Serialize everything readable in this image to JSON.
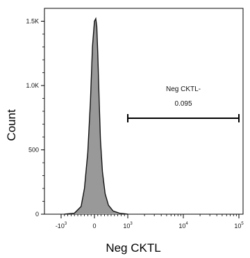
{
  "chart_data": {
    "type": "area",
    "xlabel": "Neg CKTL",
    "ylabel": "Count",
    "x_scale": "biexponential",
    "xlim": [
      -1800,
      150000
    ],
    "ylim": [
      0,
      1600
    ],
    "y_ticks": [
      {
        "value": 0,
        "label": "0"
      },
      {
        "value": 500,
        "label": "500"
      },
      {
        "value": 1000,
        "label": "1.0K"
      },
      {
        "value": 1500,
        "label": "1.5K"
      }
    ],
    "x_ticks": [
      {
        "value": -1000,
        "base": "-10",
        "exp": "3"
      },
      {
        "value": 0,
        "base": "0",
        "exp": ""
      },
      {
        "value": 1000,
        "base": "10",
        "exp": "3"
      },
      {
        "value": 10000,
        "base": "10",
        "exp": "4"
      },
      {
        "value": 100000,
        "base": "10",
        "exp": "5"
      }
    ],
    "series": [
      {
        "x": [
          -900,
          -600,
          -400,
          -300,
          -200,
          -120,
          -60,
          0,
          40,
          70,
          100,
          140,
          180,
          240,
          320,
          420,
          560,
          750,
          1000
        ],
        "y": [
          0,
          8,
          60,
          200,
          480,
          880,
          1300,
          1500,
          1520,
          1460,
          1250,
          900,
          580,
          330,
          160,
          70,
          25,
          8,
          0
        ]
      }
    ],
    "fill_color": "#999999",
    "line_color": "#111111",
    "grid": false,
    "gate": {
      "name": "Neg CKTL-",
      "value": "0.095",
      "x_range": [
        1000,
        100000
      ]
    }
  }
}
